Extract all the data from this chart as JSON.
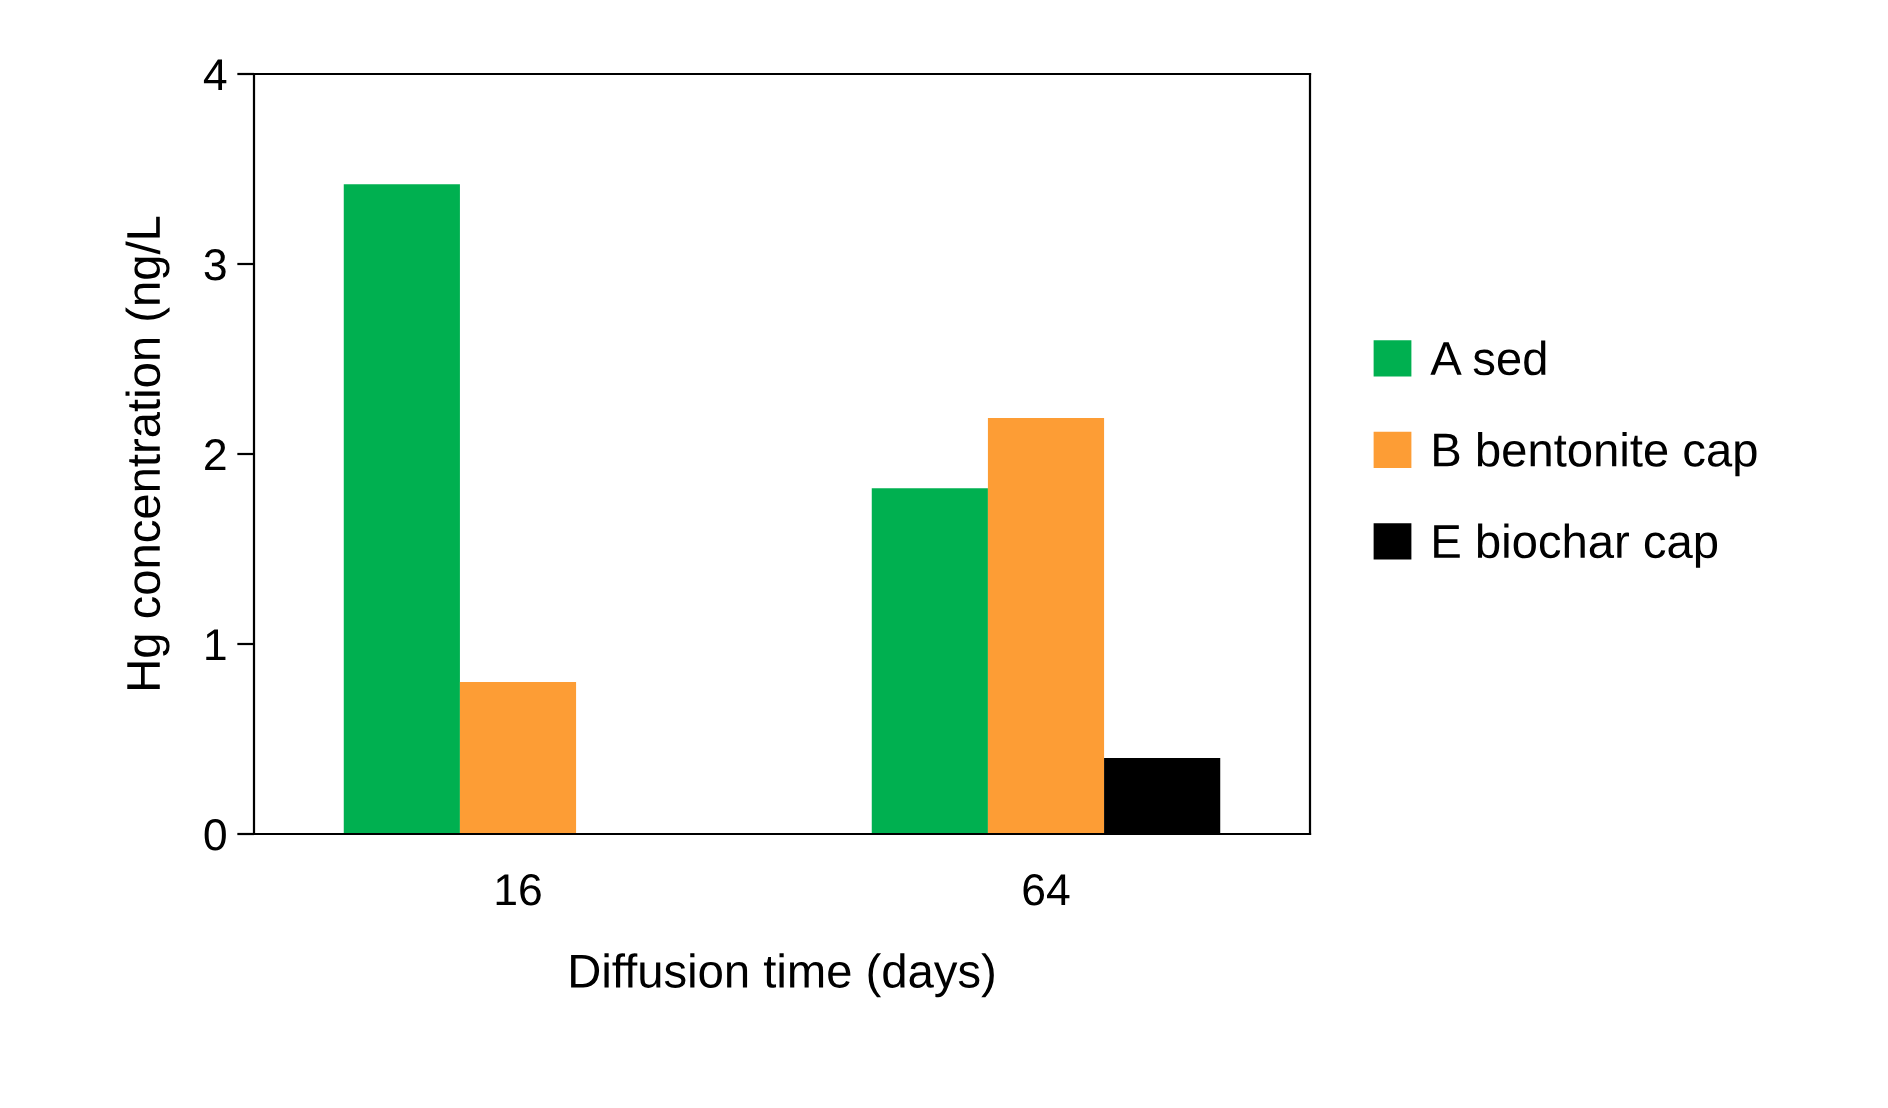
{
  "chart_data": {
    "type": "bar",
    "xlabel": "Diffusion time (days)",
    "ylabel": "Hg concentration (ng/L",
    "categories": [
      "16",
      "64"
    ],
    "series": [
      {
        "name": "A sed",
        "color": "#00b050",
        "values": [
          3.42,
          1.82
        ]
      },
      {
        "name": "B bentonite cap",
        "color": "#fd9d35",
        "values": [
          0.8,
          2.19
        ]
      },
      {
        "name": "E biochar cap",
        "color": "#000000",
        "values": [
          null,
          0.4
        ]
      }
    ],
    "ylim": [
      0,
      4
    ],
    "yticks": [
      0,
      1,
      2,
      3,
      4
    ],
    "grid": false,
    "legend": "right"
  }
}
